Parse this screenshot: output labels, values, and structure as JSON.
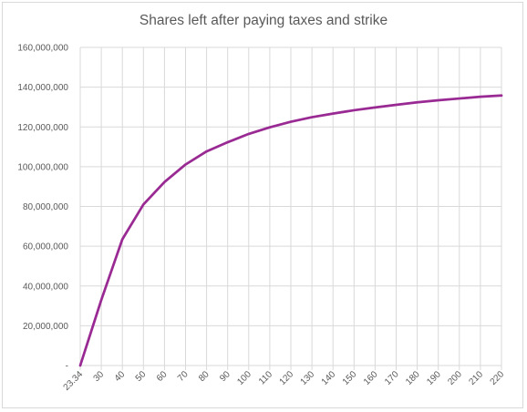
{
  "chart_data": {
    "type": "line",
    "title": "Shares left after paying taxes and strike",
    "xlabel": "",
    "ylabel": "",
    "categories": [
      "23.34",
      "30",
      "40",
      "50",
      "60",
      "70",
      "80",
      "90",
      "100",
      "110",
      "120",
      "130",
      "140",
      "150",
      "160",
      "170",
      "180",
      "190",
      "200",
      "210",
      "220"
    ],
    "series": [
      {
        "values": [
          0,
          33000000,
          63500000,
          81000000,
          92300000,
          101100000,
          107700000,
          112300000,
          116500000,
          119800000,
          122600000,
          124900000,
          126700000,
          128400000,
          129800000,
          131100000,
          132400000,
          133400000,
          134300000,
          135200000,
          135800000
        ],
        "color": "#9a2a93"
      }
    ],
    "y_tick_labels": [
      "-",
      "20,000,000",
      "40,000,000",
      "60,000,000",
      "80,000,000",
      "100,000,000",
      "120,000,000",
      "140,000,000",
      "160,000,000"
    ],
    "y_tick_values": [
      0,
      20000000,
      40000000,
      60000000,
      80000000,
      100000000,
      120000000,
      140000000,
      160000000
    ],
    "ylim": [
      0,
      160000000
    ],
    "grid": true,
    "legend": "none",
    "colors": {
      "line": "#9a2a93",
      "grid": "#d9d9d9",
      "text": "#595959"
    }
  }
}
